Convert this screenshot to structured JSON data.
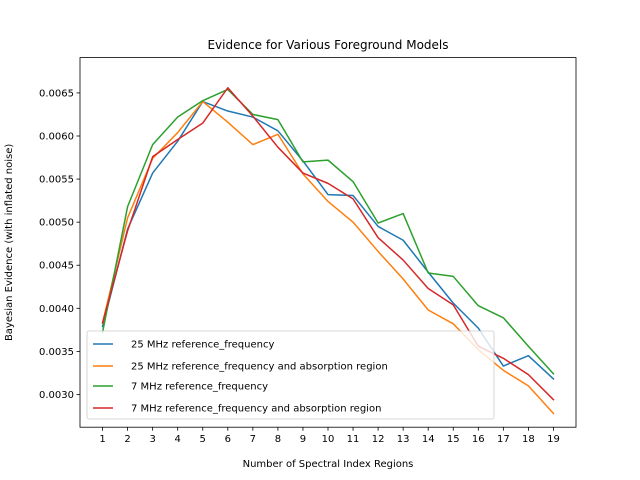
{
  "chart_data": {
    "type": "line",
    "title": "Evidence for Various Foreground Models",
    "xlabel": "Number of Spectral Index Regions",
    "ylabel": "Bayesian Evidence (with inflated noise)",
    "xlim": [
      0.1,
      19.9
    ],
    "ylim": [
      0.00262,
      0.00691
    ],
    "xticks": [
      1,
      2,
      3,
      4,
      5,
      6,
      7,
      8,
      9,
      10,
      11,
      12,
      13,
      14,
      15,
      16,
      17,
      18,
      19
    ],
    "xtick_labels": [
      "1",
      "2",
      "3",
      "4",
      "5",
      "6",
      "7",
      "8",
      "9",
      "10",
      "11",
      "12",
      "13",
      "14",
      "15",
      "16",
      "17",
      "18",
      "19"
    ],
    "yticks": [
      0.003,
      0.0035,
      0.004,
      0.0045,
      0.005,
      0.0055,
      0.006,
      0.0065
    ],
    "ytick_labels": [
      "0.0030",
      "0.0035",
      "0.0040",
      "0.0045",
      "0.0050",
      "0.0055",
      "0.0060",
      "0.0065"
    ],
    "grid": false,
    "legend_position": "lower-left",
    "x": [
      1,
      2,
      3,
      4,
      5,
      6,
      7,
      8,
      9,
      10,
      11,
      12,
      13,
      14,
      15,
      16,
      17,
      18,
      19
    ],
    "series": [
      {
        "name": "25 MHz reference_frequency",
        "color": "#1f77b4",
        "values": [
          0.00379,
          0.00492,
          0.00557,
          0.00594,
          0.0064,
          0.00629,
          0.00622,
          0.00606,
          0.00571,
          0.00532,
          0.00531,
          0.00495,
          0.00479,
          0.00442,
          0.00406,
          0.00377,
          0.00333,
          0.00345,
          0.00318
        ]
      },
      {
        "name": "25 MHz reference_frequency and absorption region",
        "color": "#ff7f0e",
        "values": [
          0.00383,
          0.00505,
          0.00574,
          0.00604,
          0.0064,
          0.00616,
          0.0059,
          0.00602,
          0.00556,
          0.00524,
          0.005,
          0.00466,
          0.00434,
          0.00398,
          0.00382,
          0.00352,
          0.00328,
          0.0031,
          0.00278
        ]
      },
      {
        "name": "7 MHz reference_frequency",
        "color": "#2ca02c",
        "values": [
          0.00372,
          0.00518,
          0.0059,
          0.00622,
          0.00641,
          0.00654,
          0.00625,
          0.00619,
          0.0057,
          0.00572,
          0.00547,
          0.00499,
          0.0051,
          0.00441,
          0.00437,
          0.00403,
          0.00389,
          0.00356,
          0.00324
        ]
      },
      {
        "name": "7 MHz reference_frequency and absorption region",
        "color": "#d62728",
        "values": [
          0.00383,
          0.0049,
          0.00576,
          0.00596,
          0.00615,
          0.00656,
          0.00623,
          0.00587,
          0.00557,
          0.00545,
          0.00527,
          0.00482,
          0.00456,
          0.00423,
          0.00404,
          0.00356,
          0.00342,
          0.00323,
          0.00294
        ]
      }
    ]
  }
}
